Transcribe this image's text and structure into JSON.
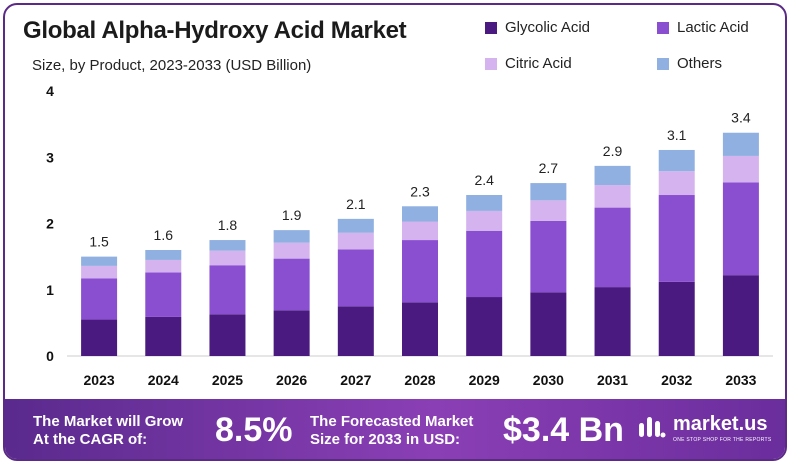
{
  "title": "Global Alpha-Hydroxy Acid Market",
  "subtitle": "Size, by Product, 2023-2033 (USD Billion)",
  "colors": {
    "glycolic": "#4a1a80",
    "lactic": "#8a4fd0",
    "citric": "#d4b3ee",
    "others": "#8fb0e0"
  },
  "chart_data": {
    "type": "bar",
    "stacked": true,
    "categories": [
      "2023",
      "2024",
      "2025",
      "2026",
      "2027",
      "2028",
      "2029",
      "2030",
      "2031",
      "2032",
      "2033"
    ],
    "series": [
      {
        "name": "Glycolic Acid",
        "values": [
          0.55,
          0.59,
          0.63,
          0.69,
          0.75,
          0.81,
          0.89,
          0.96,
          1.04,
          1.12,
          1.22
        ]
      },
      {
        "name": "Lactic Acid",
        "values": [
          0.62,
          0.67,
          0.74,
          0.78,
          0.86,
          0.94,
          1.0,
          1.08,
          1.2,
          1.31,
          1.4
        ]
      },
      {
        "name": "Citric Acid",
        "values": [
          0.19,
          0.19,
          0.22,
          0.24,
          0.25,
          0.28,
          0.3,
          0.31,
          0.34,
          0.36,
          0.4
        ]
      },
      {
        "name": "Others",
        "values": [
          0.14,
          0.15,
          0.16,
          0.19,
          0.21,
          0.23,
          0.24,
          0.26,
          0.29,
          0.32,
          0.35
        ]
      }
    ],
    "totals": [
      "1.5",
      "1.6",
      "1.8",
      "1.9",
      "2.1",
      "2.3",
      "2.4",
      "2.7",
      "2.9",
      "3.1",
      "3.4"
    ],
    "ylim": [
      0,
      4
    ],
    "yticks": [
      "0",
      "1",
      "2",
      "3",
      "4"
    ],
    "grid": true,
    "legend": "top-right"
  },
  "footer": {
    "cagr_label_1": "The Market will Grow",
    "cagr_label_2": "At the CAGR of:",
    "cagr_value": "8.5%",
    "forecast_label_1": "The Forecasted Market",
    "forecast_label_2": "Size for 2033 in USD:",
    "forecast_value": "$3.4 Bn",
    "brand_name": "market.us",
    "brand_tagline": "ONE STOP SHOP FOR THE REPORTS"
  }
}
